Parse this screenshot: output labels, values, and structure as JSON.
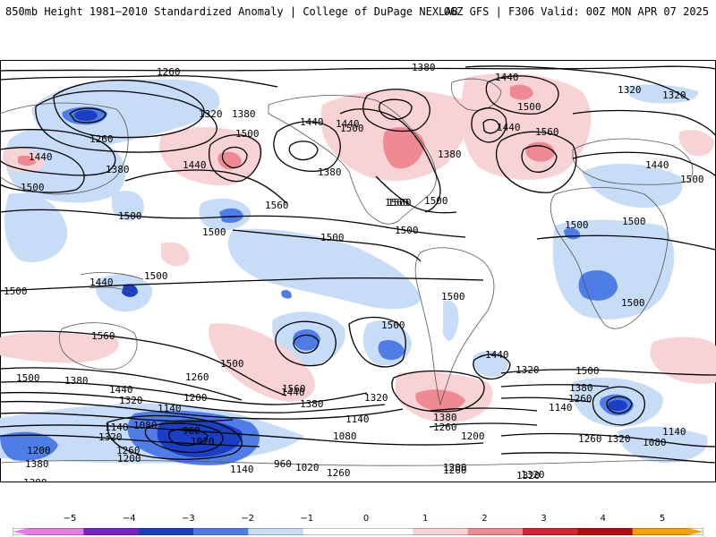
{
  "header": {
    "left_title": "850mb Height 1981−2010 Standardized Anomaly | College of DuPage NEXLAB",
    "right_title": "06Z GFS | F306 Valid: 00Z MON APR 07 2025"
  },
  "colors": {
    "neg5": "#e67ae6",
    "neg4": "#7a22c9",
    "neg3": "#1a3fc4",
    "neg2": "#4f7de8",
    "neg1": "#c6dcf7",
    "zero": "#ffffff",
    "pos1": "#f8d3d6",
    "pos2": "#ef8a92",
    "pos3": "#d9232e",
    "pos4": "#b80a0a",
    "pos5": "#f5a300"
  },
  "colorbar": {
    "ticks": [
      "−5",
      "−4",
      "−3",
      "−2",
      "−1",
      "0",
      "1",
      "2",
      "3",
      "4",
      "5"
    ]
  },
  "contour_labels": [
    {
      "id": "c1",
      "text": "1260"
    },
    {
      "id": "c2",
      "text": "1380"
    },
    {
      "id": "c3",
      "text": "1440"
    },
    {
      "id": "c4",
      "text": "1320"
    },
    {
      "id": "c5",
      "text": "1380"
    },
    {
      "id": "c6",
      "text": "1440"
    },
    {
      "id": "c7",
      "text": "1500"
    },
    {
      "id": "c8",
      "text": "1440"
    },
    {
      "id": "c9",
      "text": "1380"
    },
    {
      "id": "c10",
      "text": "1500"
    },
    {
      "id": "c11",
      "text": "1560"
    },
    {
      "id": "c12",
      "text": "1500"
    },
    {
      "id": "c13",
      "text": "1440"
    },
    {
      "id": "c14",
      "text": "1560"
    },
    {
      "id": "c15",
      "text": "1500"
    },
    {
      "id": "c16",
      "text": "1500"
    },
    {
      "id": "c17",
      "text": "1500"
    },
    {
      "id": "c18",
      "text": "1500"
    },
    {
      "id": "c19",
      "text": "1560"
    },
    {
      "id": "c20",
      "text": "1500"
    },
    {
      "id": "c21",
      "text": "1440"
    },
    {
      "id": "c22",
      "text": "1380"
    },
    {
      "id": "c23",
      "text": "1500"
    },
    {
      "id": "c24",
      "text": "1500"
    },
    {
      "id": "c25",
      "text": "1320"
    },
    {
      "id": "c26",
      "text": "1260"
    },
    {
      "id": "c27",
      "text": "1500"
    },
    {
      "id": "c28",
      "text": "1440"
    },
    {
      "id": "c29",
      "text": "1320"
    },
    {
      "id": "c30",
      "text": "1380"
    },
    {
      "id": "c31",
      "text": "1440"
    },
    {
      "id": "c32",
      "text": "1500"
    },
    {
      "id": "c33",
      "text": "1560"
    },
    {
      "id": "c34",
      "text": "1500"
    },
    {
      "id": "c35",
      "text": "1440"
    },
    {
      "id": "c36",
      "text": "1500"
    },
    {
      "id": "c37",
      "text": "1500"
    },
    {
      "id": "c38",
      "text": "1560"
    },
    {
      "id": "c39",
      "text": "1500"
    },
    {
      "id": "c40",
      "text": "1500"
    },
    {
      "id": "c41",
      "text": "1380"
    },
    {
      "id": "c42",
      "text": "1440"
    },
    {
      "id": "c43",
      "text": "1320"
    },
    {
      "id": "c44",
      "text": "1200"
    },
    {
      "id": "c45",
      "text": "1260"
    },
    {
      "id": "c46",
      "text": "1140"
    },
    {
      "id": "c47",
      "text": "1080"
    },
    {
      "id": "c48",
      "text": "1140"
    },
    {
      "id": "c49",
      "text": "960"
    },
    {
      "id": "c50",
      "text": "1020"
    },
    {
      "id": "c51",
      "text": "1320"
    },
    {
      "id": "c52",
      "text": "1200"
    },
    {
      "id": "c53",
      "text": "1260"
    },
    {
      "id": "c54",
      "text": "1200"
    },
    {
      "id": "c55",
      "text": "1380"
    },
    {
      "id": "c56",
      "text": "1140"
    },
    {
      "id": "c57",
      "text": "960"
    },
    {
      "id": "c58",
      "text": "1020"
    },
    {
      "id": "c59",
      "text": "1260"
    },
    {
      "id": "c60",
      "text": "1500"
    },
    {
      "id": "c61",
      "text": "1440"
    },
    {
      "id": "c62",
      "text": "1380"
    },
    {
      "id": "c63",
      "text": "1560"
    },
    {
      "id": "c64",
      "text": "1320"
    },
    {
      "id": "c65",
      "text": "1140"
    },
    {
      "id": "c66",
      "text": "1080"
    },
    {
      "id": "c67",
      "text": "1200"
    },
    {
      "id": "c68",
      "text": "1380"
    },
    {
      "id": "c69",
      "text": "1260"
    },
    {
      "id": "c70",
      "text": "1200"
    },
    {
      "id": "c71",
      "text": "1320"
    },
    {
      "id": "c72",
      "text": "1440"
    },
    {
      "id": "c73",
      "text": "1320"
    },
    {
      "id": "c74",
      "text": "1500"
    },
    {
      "id": "c75",
      "text": "1380"
    },
    {
      "id": "c76",
      "text": "1260"
    },
    {
      "id": "c77",
      "text": "1140"
    },
    {
      "id": "c78",
      "text": "1260"
    },
    {
      "id": "c79",
      "text": "1320"
    },
    {
      "id": "c80",
      "text": "1080"
    },
    {
      "id": "c81",
      "text": "1140"
    },
    {
      "id": "c82",
      "text": "1500"
    },
    {
      "id": "c83",
      "text": "1380"
    },
    {
      "id": "c84",
      "text": "1200"
    },
    {
      "id": "c85",
      "text": "1320"
    }
  ]
}
